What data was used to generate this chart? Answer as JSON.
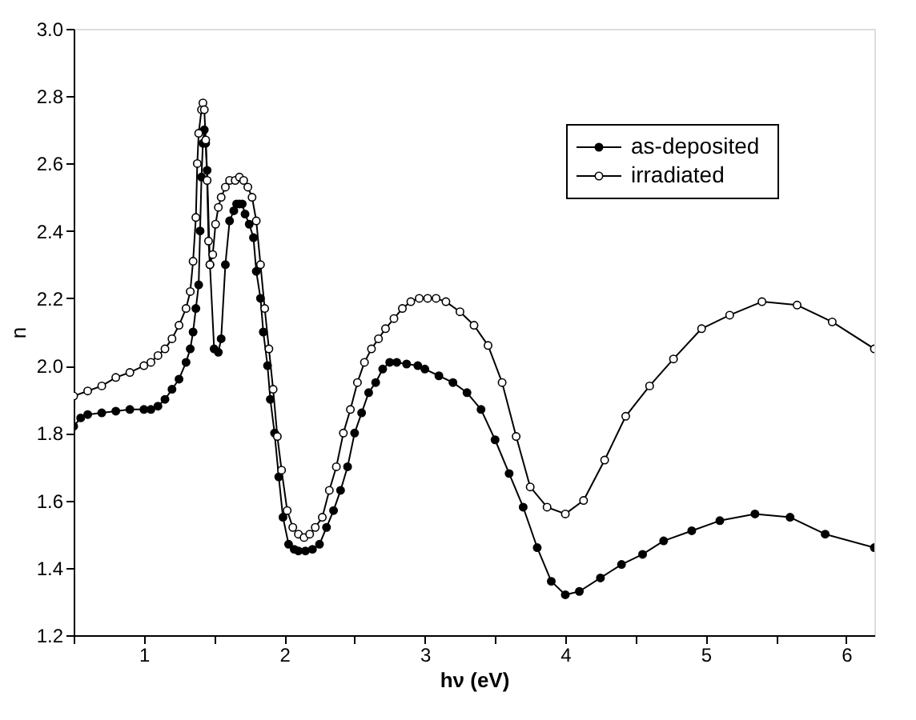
{
  "chart_data": {
    "type": "line",
    "xlabel": "hν (eV)",
    "ylabel": "n",
    "xlim": [
      0.5,
      6.2
    ],
    "ylim": [
      1.2,
      3.0
    ],
    "xticks": [
      {
        "value": 0.5,
        "label": null
      },
      1,
      {
        "value": 1.5,
        "label": null
      },
      2,
      {
        "value": 2.5,
        "label": null
      },
      3,
      {
        "value": 3.5,
        "label": null
      },
      4,
      {
        "value": 4.5,
        "label": null
      },
      5,
      {
        "value": 5.5,
        "label": null
      },
      6
    ],
    "yticks": [
      1.2,
      1.4,
      1.6,
      1.8,
      {
        "value": 2.0,
        "label": "2.0"
      },
      2.2,
      2.4,
      2.6,
      2.8,
      {
        "value": 3.0,
        "label": "3.0"
      }
    ],
    "grid": false,
    "legend": "top right",
    "marker": "circle",
    "line_style": "solid",
    "series": [
      {
        "name": "as-deposited",
        "color": "#000000",
        "x": [
          0.5,
          0.55,
          0.6,
          0.7,
          0.8,
          0.9,
          1.0,
          1.05,
          1.1,
          1.15,
          1.2,
          1.25,
          1.3,
          1.33,
          1.35,
          1.37,
          1.39,
          1.4,
          1.41,
          1.42,
          1.43,
          1.44,
          1.45,
          1.47,
          1.5,
          1.53,
          1.55,
          1.58,
          1.61,
          1.64,
          1.66,
          1.68,
          1.7,
          1.72,
          1.75,
          1.78,
          1.8,
          1.83,
          1.85,
          1.88,
          1.9,
          1.93,
          1.96,
          1.99,
          2.03,
          2.07,
          2.1,
          2.15,
          2.2,
          2.25,
          2.3,
          2.35,
          2.4,
          2.45,
          2.5,
          2.55,
          2.6,
          2.65,
          2.7,
          2.75,
          2.8,
          2.87,
          2.95,
          3.0,
          3.1,
          3.2,
          3.3,
          3.4,
          3.5,
          3.6,
          3.7,
          3.8,
          3.9,
          4.0,
          4.1,
          4.25,
          4.4,
          4.55,
          4.7,
          4.9,
          5.1,
          5.35,
          5.6,
          5.85,
          6.2
        ],
        "values": [
          1.82,
          1.845,
          1.855,
          1.86,
          1.865,
          1.87,
          1.87,
          1.87,
          1.88,
          1.9,
          1.93,
          1.96,
          2.01,
          2.05,
          2.1,
          2.17,
          2.24,
          2.4,
          2.56,
          2.66,
          2.7,
          2.66,
          2.58,
          2.3,
          2.05,
          2.04,
          2.08,
          2.3,
          2.43,
          2.46,
          2.48,
          2.48,
          2.48,
          2.45,
          2.42,
          2.38,
          2.28,
          2.2,
          2.1,
          2.0,
          1.9,
          1.8,
          1.67,
          1.55,
          1.47,
          1.455,
          1.45,
          1.45,
          1.455,
          1.47,
          1.52,
          1.57,
          1.63,
          1.7,
          1.8,
          1.86,
          1.92,
          1.95,
          1.99,
          2.01,
          2.01,
          2.005,
          2.0,
          1.99,
          1.97,
          1.95,
          1.92,
          1.87,
          1.78,
          1.68,
          1.58,
          1.46,
          1.36,
          1.32,
          1.33,
          1.37,
          1.41,
          1.44,
          1.48,
          1.51,
          1.54,
          1.56,
          1.55,
          1.5,
          1.46
        ]
      },
      {
        "name": "irradiated",
        "color": "#000000",
        "x": [
          0.5,
          0.6,
          0.7,
          0.8,
          0.9,
          1.0,
          1.05,
          1.1,
          1.15,
          1.2,
          1.25,
          1.3,
          1.33,
          1.35,
          1.37,
          1.38,
          1.39,
          1.41,
          1.42,
          1.43,
          1.44,
          1.45,
          1.46,
          1.47,
          1.49,
          1.51,
          1.53,
          1.55,
          1.58,
          1.61,
          1.65,
          1.68,
          1.71,
          1.74,
          1.77,
          1.8,
          1.83,
          1.86,
          1.89,
          1.92,
          1.95,
          1.98,
          2.02,
          2.06,
          2.1,
          2.14,
          2.18,
          2.22,
          2.27,
          2.32,
          2.37,
          2.42,
          2.47,
          2.52,
          2.57,
          2.62,
          2.67,
          2.72,
          2.78,
          2.84,
          2.9,
          2.96,
          3.02,
          3.08,
          3.15,
          3.25,
          3.35,
          3.45,
          3.55,
          3.65,
          3.75,
          3.87,
          4.0,
          4.13,
          4.28,
          4.43,
          4.6,
          4.77,
          4.97,
          5.17,
          5.4,
          5.65,
          5.9,
          6.2
        ],
        "values": [
          1.91,
          1.925,
          1.94,
          1.965,
          1.98,
          2.0,
          2.01,
          2.03,
          2.05,
          2.08,
          2.12,
          2.17,
          2.22,
          2.31,
          2.44,
          2.6,
          2.69,
          2.76,
          2.78,
          2.76,
          2.67,
          2.55,
          2.37,
          2.3,
          2.33,
          2.42,
          2.47,
          2.5,
          2.53,
          2.55,
          2.55,
          2.56,
          2.55,
          2.53,
          2.5,
          2.43,
          2.3,
          2.17,
          2.05,
          1.93,
          1.79,
          1.69,
          1.57,
          1.52,
          1.5,
          1.49,
          1.5,
          1.52,
          1.55,
          1.63,
          1.7,
          1.8,
          1.87,
          1.95,
          2.01,
          2.05,
          2.08,
          2.11,
          2.14,
          2.17,
          2.19,
          2.2,
          2.2,
          2.2,
          2.19,
          2.16,
          2.12,
          2.06,
          1.95,
          1.79,
          1.64,
          1.58,
          1.56,
          1.6,
          1.72,
          1.85,
          1.94,
          2.02,
          2.11,
          2.15,
          2.19,
          2.18,
          2.13,
          2.05
        ]
      }
    ]
  }
}
